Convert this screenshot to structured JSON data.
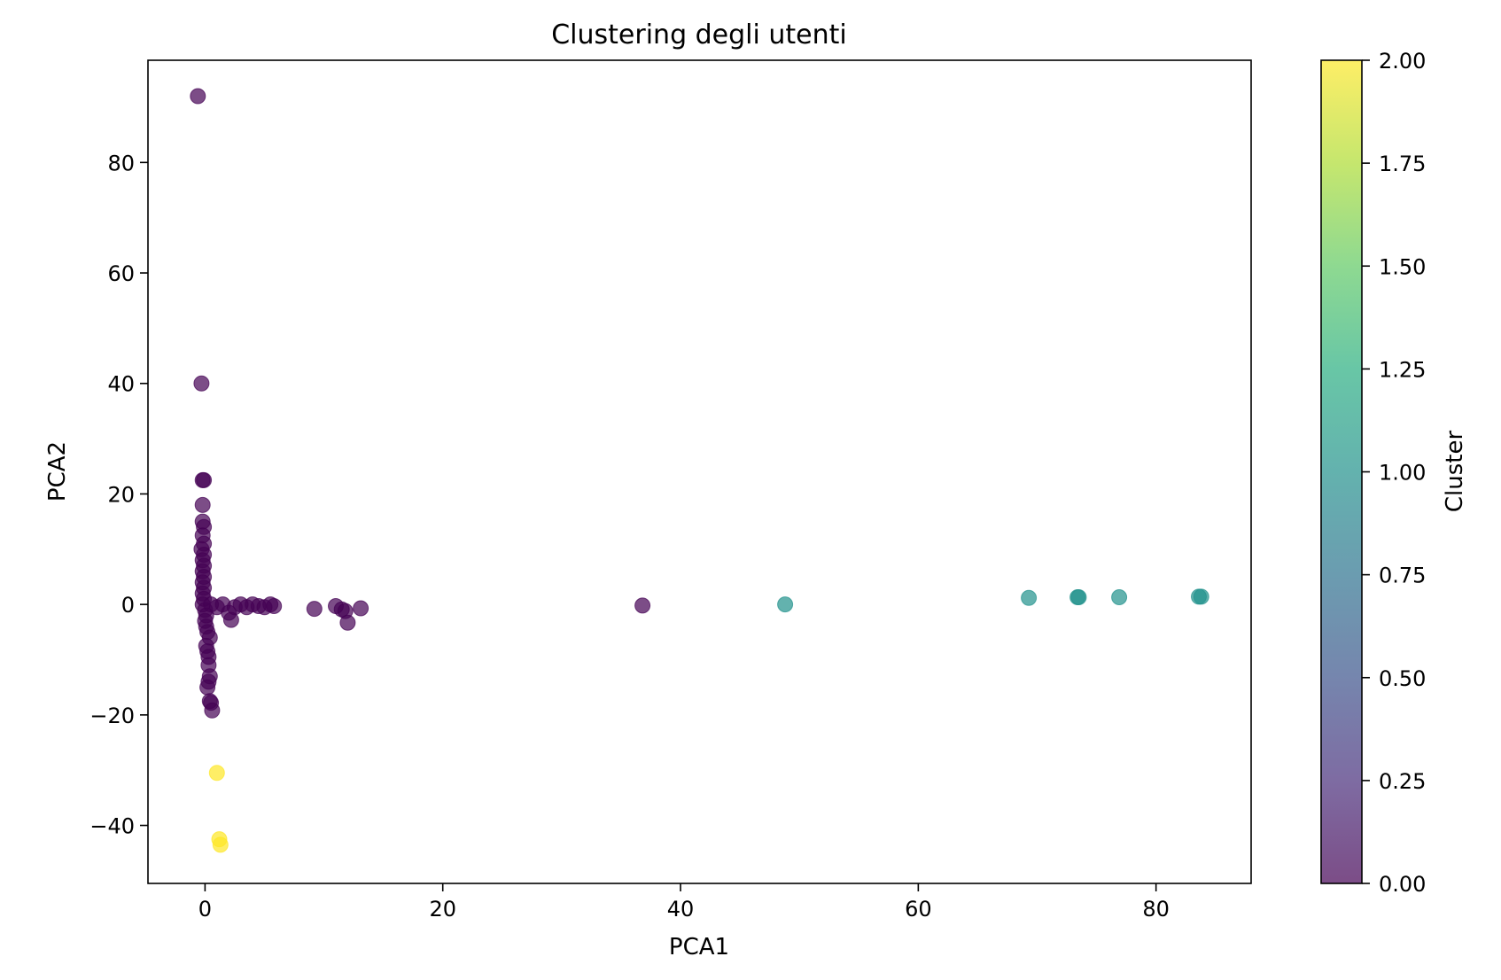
{
  "chart_data": {
    "type": "scatter",
    "title": "Clustering degli utenti",
    "xlabel": "PCA1",
    "ylabel": "PCA2",
    "xlim": [
      -4.8,
      88
    ],
    "ylim": [
      -50.5,
      98.5
    ],
    "xticks": [
      0,
      20,
      40,
      60,
      80
    ],
    "xtick_labels": [
      "0",
      "20",
      "40",
      "60",
      "80"
    ],
    "yticks": [
      -40,
      -20,
      0,
      20,
      40,
      60,
      80
    ],
    "ytick_labels": [
      "−40",
      "−20",
      "0",
      "20",
      "40",
      "60",
      "80"
    ],
    "grid": false,
    "colormap": "viridis",
    "point_alpha": 0.7,
    "colorbar": {
      "label": "Cluster",
      "range": [
        0,
        2
      ],
      "ticks": [
        0,
        0.25,
        0.5,
        0.75,
        1.0,
        1.25,
        1.5,
        1.75,
        2.0
      ],
      "tick_labels": [
        "0.00",
        "0.25",
        "0.50",
        "0.75",
        "1.00",
        "1.25",
        "1.50",
        "1.75",
        "2.00"
      ],
      "colors": [
        "#440154",
        "#472d7b",
        "#3b528b",
        "#2c728e",
        "#21918c",
        "#28ae80",
        "#5ec962",
        "#addc30",
        "#fde725"
      ]
    },
    "points": [
      {
        "x": -0.6,
        "y": 92.0,
        "cluster": 0
      },
      {
        "x": -0.3,
        "y": 40.0,
        "cluster": 0
      },
      {
        "x": -0.2,
        "y": 22.5,
        "cluster": 0
      },
      {
        "x": -0.1,
        "y": 22.5,
        "cluster": 0
      },
      {
        "x": -0.2,
        "y": 18.0,
        "cluster": 0
      },
      {
        "x": -0.2,
        "y": 15.0,
        "cluster": 0
      },
      {
        "x": -0.1,
        "y": 14.0,
        "cluster": 0
      },
      {
        "x": -0.2,
        "y": 12.5,
        "cluster": 0
      },
      {
        "x": -0.1,
        "y": 11.0,
        "cluster": 0
      },
      {
        "x": -0.3,
        "y": 10.0,
        "cluster": 0
      },
      {
        "x": -0.1,
        "y": 9.0,
        "cluster": 0
      },
      {
        "x": -0.2,
        "y": 8.0,
        "cluster": 0
      },
      {
        "x": -0.1,
        "y": 7.0,
        "cluster": 0
      },
      {
        "x": -0.2,
        "y": 6.0,
        "cluster": 0
      },
      {
        "x": -0.1,
        "y": 5.0,
        "cluster": 0
      },
      {
        "x": -0.2,
        "y": 4.0,
        "cluster": 0
      },
      {
        "x": -0.1,
        "y": 3.0,
        "cluster": 0
      },
      {
        "x": -0.2,
        "y": 2.0,
        "cluster": 0
      },
      {
        "x": -0.1,
        "y": 1.0,
        "cluster": 0
      },
      {
        "x": -0.2,
        "y": 0.0,
        "cluster": 0
      },
      {
        "x": 0.0,
        "y": -1.0,
        "cluster": 0
      },
      {
        "x": 0.1,
        "y": -2.0,
        "cluster": 0
      },
      {
        "x": 0.0,
        "y": -3.0,
        "cluster": 0
      },
      {
        "x": 0.1,
        "y": -4.0,
        "cluster": 0
      },
      {
        "x": 0.2,
        "y": -5.0,
        "cluster": 0
      },
      {
        "x": 0.4,
        "y": -6.0,
        "cluster": 0
      },
      {
        "x": 0.1,
        "y": -7.5,
        "cluster": 0
      },
      {
        "x": 0.2,
        "y": -8.5,
        "cluster": 0
      },
      {
        "x": 0.3,
        "y": -9.5,
        "cluster": 0
      },
      {
        "x": 0.3,
        "y": -11.0,
        "cluster": 0
      },
      {
        "x": 0.4,
        "y": -13.0,
        "cluster": 0
      },
      {
        "x": 0.3,
        "y": -14.0,
        "cluster": 0
      },
      {
        "x": 0.2,
        "y": -15.0,
        "cluster": 0
      },
      {
        "x": 0.4,
        "y": -17.5,
        "cluster": 0
      },
      {
        "x": 0.5,
        "y": -17.8,
        "cluster": 0
      },
      {
        "x": 0.6,
        "y": -19.2,
        "cluster": 0
      },
      {
        "x": 0.5,
        "y": 0.0,
        "cluster": 0
      },
      {
        "x": 1.0,
        "y": -0.5,
        "cluster": 0
      },
      {
        "x": 1.5,
        "y": 0.0,
        "cluster": 0
      },
      {
        "x": 2.0,
        "y": -1.5,
        "cluster": 0
      },
      {
        "x": 2.2,
        "y": -2.8,
        "cluster": 0
      },
      {
        "x": 2.5,
        "y": -0.5,
        "cluster": 0
      },
      {
        "x": 3.0,
        "y": 0.0,
        "cluster": 0
      },
      {
        "x": 3.5,
        "y": -0.5,
        "cluster": 0
      },
      {
        "x": 4.0,
        "y": 0.0,
        "cluster": 0
      },
      {
        "x": 4.5,
        "y": -0.3,
        "cluster": 0
      },
      {
        "x": 5.0,
        "y": -0.5,
        "cluster": 0
      },
      {
        "x": 5.5,
        "y": 0.0,
        "cluster": 0
      },
      {
        "x": 5.8,
        "y": -0.3,
        "cluster": 0
      },
      {
        "x": 9.2,
        "y": -0.8,
        "cluster": 0
      },
      {
        "x": 11.0,
        "y": -0.3,
        "cluster": 0
      },
      {
        "x": 11.5,
        "y": -0.9,
        "cluster": 0
      },
      {
        "x": 11.8,
        "y": -1.2,
        "cluster": 0
      },
      {
        "x": 12.0,
        "y": -3.3,
        "cluster": 0
      },
      {
        "x": 13.1,
        "y": -0.7,
        "cluster": 0
      },
      {
        "x": 36.8,
        "y": -0.2,
        "cluster": 0
      },
      {
        "x": 48.8,
        "y": 0.0,
        "cluster": 1
      },
      {
        "x": 69.3,
        "y": 1.2,
        "cluster": 1
      },
      {
        "x": 73.4,
        "y": 1.3,
        "cluster": 1
      },
      {
        "x": 73.5,
        "y": 1.3,
        "cluster": 1
      },
      {
        "x": 76.9,
        "y": 1.3,
        "cluster": 1
      },
      {
        "x": 83.6,
        "y": 1.4,
        "cluster": 1
      },
      {
        "x": 83.8,
        "y": 1.4,
        "cluster": 1
      },
      {
        "x": 1.0,
        "y": -30.5,
        "cluster": 2
      },
      {
        "x": 1.2,
        "y": -42.5,
        "cluster": 2
      },
      {
        "x": 1.3,
        "y": -43.5,
        "cluster": 2
      }
    ]
  }
}
